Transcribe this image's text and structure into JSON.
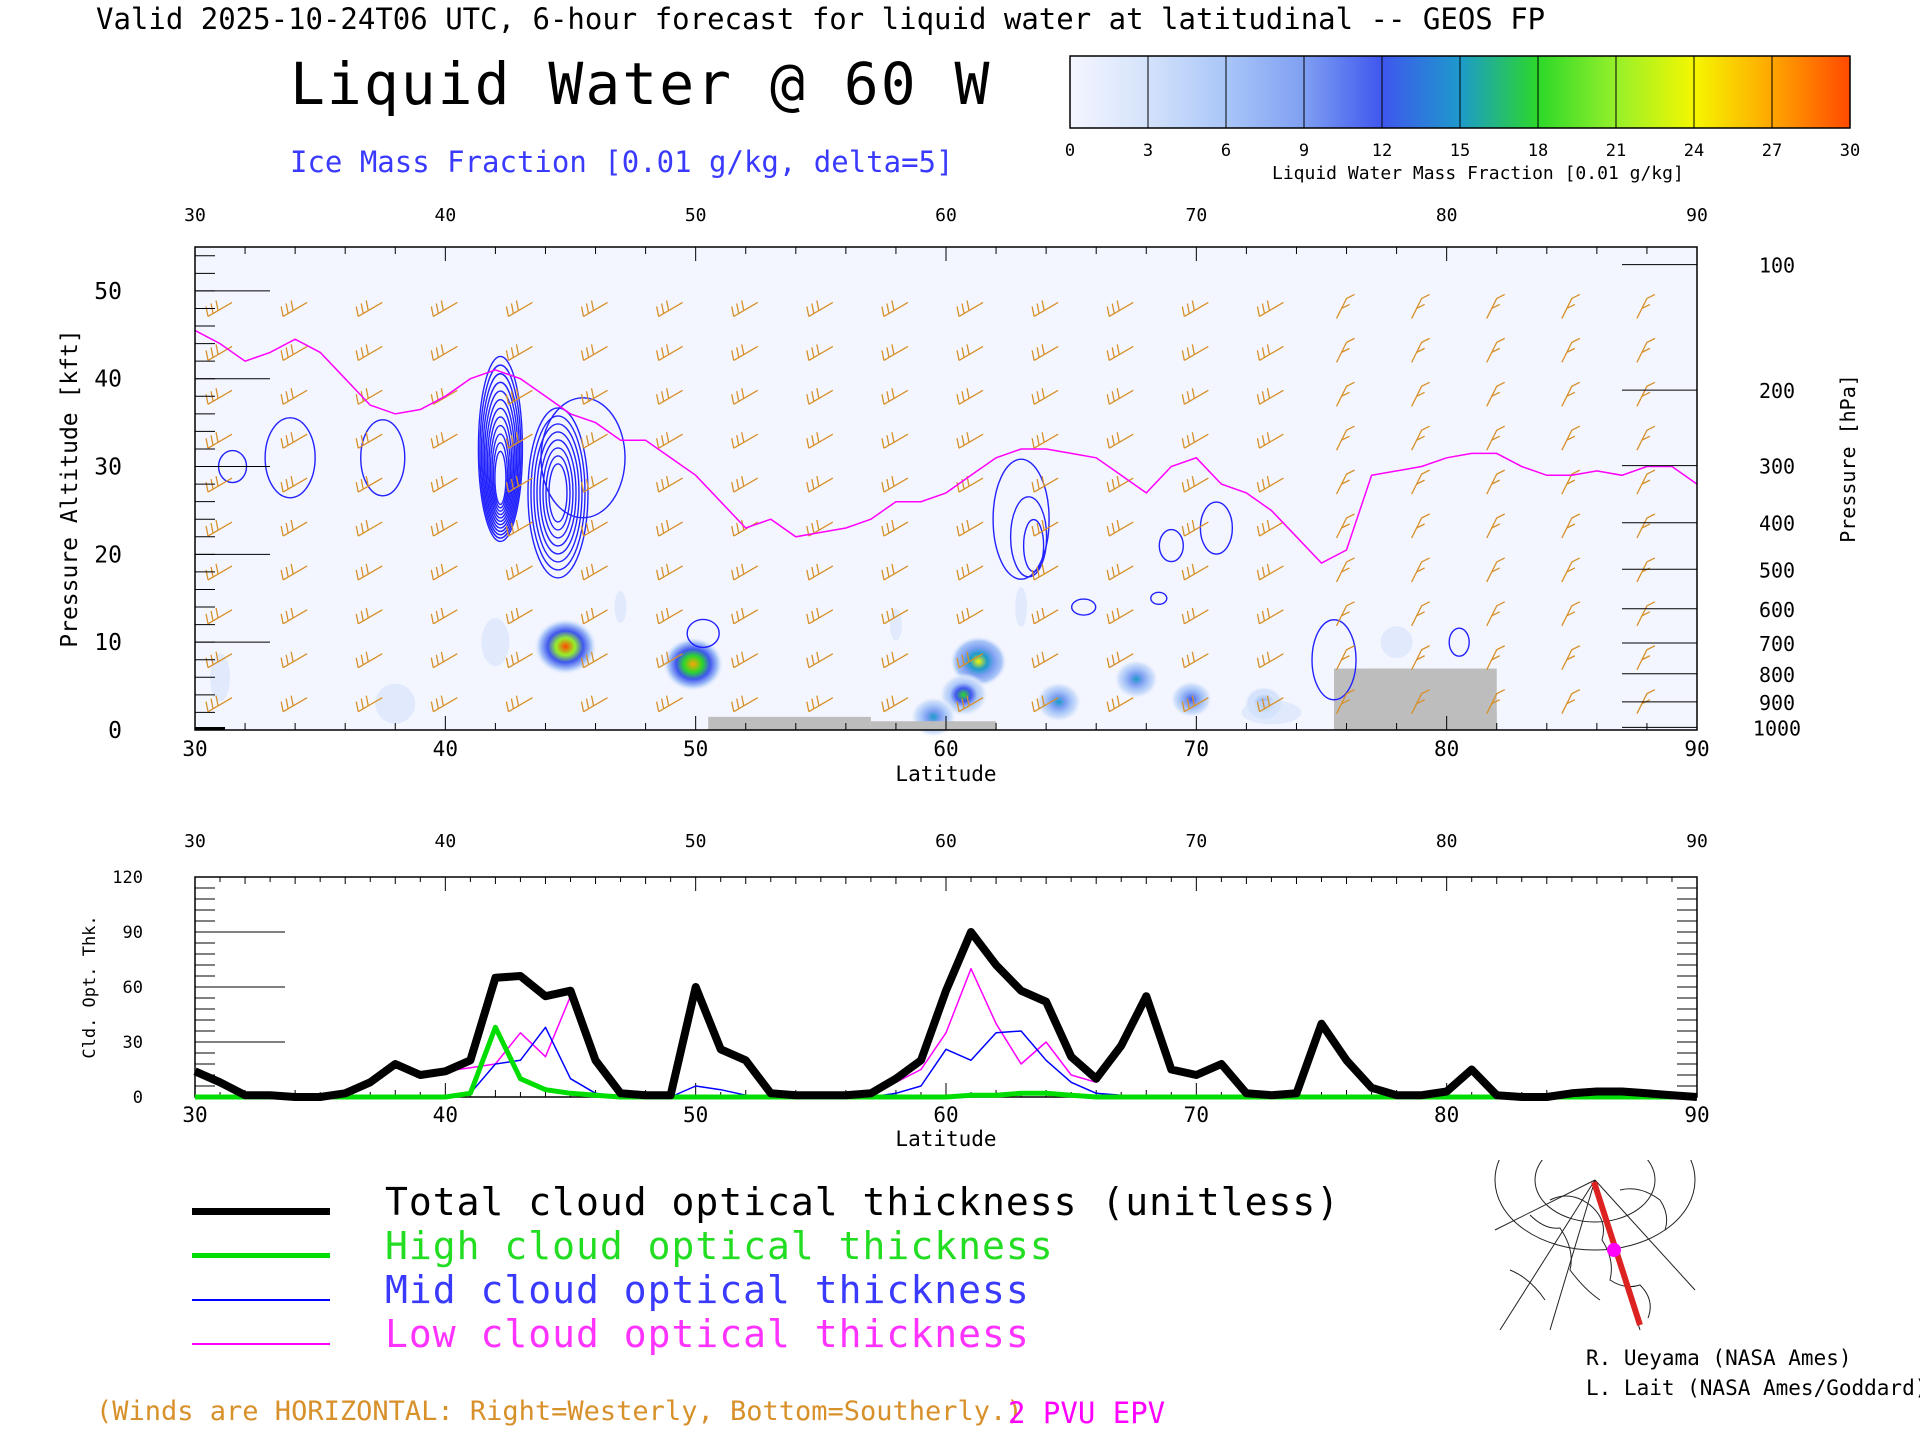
{
  "header": {
    "title": "Valid 2025-10-24T06 UTC, 6-hour forecast for liquid water at latitudinal -- GEOS FP",
    "main_title": "Liquid Water @ 60 W",
    "ice_note": "Ice Mass Fraction [0.01 g/kg, delta=5]"
  },
  "colorbar": {
    "label": "Liquid Water Mass Fraction [0.01 g/kg]",
    "ticks": [
      "0",
      "3",
      "6",
      "9",
      "12",
      "15",
      "18",
      "21",
      "24",
      "27",
      "30"
    ],
    "colors": [
      "#f4f6ff",
      "#d4e2fb",
      "#a9c6f8",
      "#7f9ff2",
      "#3f56ee",
      "#1d9acb",
      "#2cd829",
      "#96f02a",
      "#f5f700",
      "#ffa600",
      "#ff4900"
    ]
  },
  "chart_data": [
    {
      "type": "heatmap",
      "title": "Liquid Water @ 60 W",
      "xlabel": "Latitude",
      "ylabel": "Pressure Altitude [kft]",
      "ylabel_right": "Pressure [hPa]",
      "xlim": [
        30,
        90
      ],
      "ylim": [
        0,
        55
      ],
      "x_ticks": [
        "30",
        "40",
        "50",
        "60",
        "70",
        "80",
        "90"
      ],
      "y_ticks": [
        "0",
        "10",
        "20",
        "30",
        "40",
        "50"
      ],
      "pressure_ticks": [
        {
          "label": "100",
          "kft": 53
        },
        {
          "label": "200",
          "kft": 38.7
        },
        {
          "label": "300",
          "kft": 30.1
        },
        {
          "label": "400",
          "kft": 23.6
        },
        {
          "label": "500",
          "kft": 18.3
        },
        {
          "label": "600",
          "kft": 13.8
        },
        {
          "label": "700",
          "kft": 9.9
        },
        {
          "label": "800",
          "kft": 6.4
        },
        {
          "label": "900",
          "kft": 3.2
        },
        {
          "label": "1000",
          "kft": 0.3
        }
      ],
      "liquid_water_blobs": [
        {
          "lat": 44.8,
          "kft": 9.5,
          "peak": 30
        },
        {
          "lat": 49.9,
          "kft": 7.5,
          "peak": 28
        },
        {
          "lat": 61.3,
          "kft": 7.8,
          "peak": 25
        },
        {
          "lat": 60.7,
          "kft": 4,
          "peak": 18
        },
        {
          "lat": 59.5,
          "kft": 1.5,
          "peak": 15
        },
        {
          "lat": 64.5,
          "kft": 3.2,
          "peak": 15
        },
        {
          "lat": 67.6,
          "kft": 5.8,
          "peak": 14
        },
        {
          "lat": 69.8,
          "kft": 3.5,
          "peak": 12
        },
        {
          "lat": 72.7,
          "kft": 3,
          "peak": 10
        }
      ],
      "epv_2pvu_line": {
        "lat": [
          30,
          31,
          32,
          33,
          34,
          35,
          36,
          37,
          38,
          39,
          40,
          41,
          42,
          43,
          44,
          45,
          46,
          47,
          48,
          49,
          50,
          51,
          52,
          53,
          54,
          55,
          56,
          57,
          58,
          59,
          60,
          61,
          62,
          63,
          64,
          65,
          66,
          67,
          68,
          69,
          70,
          71,
          72,
          73,
          74,
          75,
          76,
          77,
          78,
          79,
          80,
          81,
          82,
          83,
          84,
          85,
          86,
          87,
          88,
          89,
          90
        ],
        "kft": [
          45.5,
          44,
          42,
          43,
          44.5,
          43,
          40,
          37,
          36,
          36.5,
          38,
          40,
          41,
          40,
          38,
          36,
          35,
          33,
          33,
          31,
          29,
          26,
          23,
          24,
          22,
          22.5,
          23,
          24,
          26,
          26,
          27,
          29,
          31,
          32,
          32,
          31.5,
          31,
          29,
          27,
          30,
          31,
          28,
          27,
          25,
          22,
          19,
          20.5,
          29,
          29.5,
          30,
          31,
          31.5,
          31.5,
          30,
          29,
          29,
          29.5,
          29,
          30,
          30,
          28
        ]
      },
      "terrain": [
        {
          "lat_start": 50.5,
          "lat_end": 57,
          "kft": 1.5
        },
        {
          "lat_start": 57,
          "lat_end": 61,
          "kft": 1
        },
        {
          "lat_start": 61,
          "lat_end": 62,
          "kft": 1
        },
        {
          "lat_start": 75.5,
          "lat_end": 82,
          "kft": 7
        }
      ]
    },
    {
      "type": "line",
      "xlabel": "Latitude",
      "ylabel": "Cld. Opt. Thk.",
      "xlim": [
        30,
        90
      ],
      "ylim": [
        0,
        120
      ],
      "x_ticks": [
        "30",
        "40",
        "50",
        "60",
        "70",
        "80",
        "90"
      ],
      "y_ticks": [
        "0",
        "30",
        "60",
        "90",
        "120"
      ],
      "x": [
        30,
        31,
        32,
        33,
        34,
        35,
        36,
        37,
        38,
        39,
        40,
        41,
        42,
        43,
        44,
        45,
        46,
        47,
        48,
        49,
        50,
        51,
        52,
        53,
        54,
        55,
        56,
        57,
        58,
        59,
        60,
        61,
        62,
        63,
        64,
        65,
        66,
        67,
        68,
        69,
        70,
        71,
        72,
        73,
        74,
        75,
        76,
        77,
        78,
        79,
        80,
        81,
        82,
        83,
        84,
        85,
        86,
        87,
        88,
        89,
        90
      ],
      "series": [
        {
          "name": "Total cloud optical thickness (unitless)",
          "color": "#000000",
          "values": [
            14,
            8,
            1,
            1,
            0,
            0,
            2,
            8,
            18,
            12,
            14,
            20,
            65,
            66,
            55,
            58,
            20,
            2,
            1,
            1,
            60,
            26,
            20,
            2,
            1,
            1,
            1,
            2,
            10,
            20,
            58,
            90,
            72,
            58,
            52,
            22,
            10,
            28,
            55,
            15,
            12,
            18,
            2,
            1,
            2,
            40,
            20,
            5,
            1,
            1,
            3,
            15,
            1,
            0,
            0,
            2,
            3,
            3,
            2,
            1,
            0
          ]
        },
        {
          "name": "High cloud optical thickness",
          "color": "#00dd00",
          "values": [
            0,
            0,
            0,
            0,
            0,
            0,
            0,
            0,
            0,
            0,
            0,
            2,
            38,
            10,
            4,
            2,
            1,
            0,
            0,
            0,
            0,
            0,
            0,
            0,
            0,
            0,
            0,
            0,
            0,
            0,
            0,
            1,
            1,
            2,
            2,
            1,
            0,
            0,
            0,
            0,
            0,
            0,
            0,
            0,
            0,
            0,
            0,
            0,
            0,
            0,
            0,
            0,
            0,
            0,
            0,
            0,
            0,
            0,
            0,
            0,
            0
          ]
        },
        {
          "name": "Mid cloud optical thickness",
          "color": "#0000ff",
          "values": [
            0,
            0,
            0,
            0,
            0,
            0,
            0,
            0,
            0,
            0,
            0,
            2,
            18,
            20,
            38,
            10,
            2,
            0,
            0,
            0,
            6,
            4,
            1,
            0,
            0,
            0,
            0,
            0,
            2,
            6,
            26,
            20,
            35,
            36,
            20,
            8,
            2,
            1,
            0,
            0,
            0,
            0,
            0,
            0,
            0,
            0,
            0,
            0,
            0,
            0,
            0,
            0,
            0,
            0,
            0,
            0,
            0,
            0,
            0,
            0,
            0
          ]
        },
        {
          "name": "Low cloud optical thickness",
          "color": "#ff00ff",
          "values": [
            14,
            8,
            1,
            1,
            0,
            0,
            2,
            8,
            18,
            12,
            14,
            16,
            18,
            35,
            22,
            55,
            18,
            2,
            1,
            1,
            56,
            24,
            20,
            2,
            1,
            1,
            1,
            2,
            8,
            15,
            35,
            70,
            40,
            18,
            30,
            12,
            8,
            28,
            55,
            15,
            12,
            18,
            2,
            1,
            2,
            40,
            20,
            5,
            1,
            1,
            3,
            15,
            1,
            0,
            0,
            2,
            3,
            3,
            2,
            1,
            0
          ]
        }
      ]
    }
  ],
  "legend": {
    "total": "Total cloud optical thickness (unitless)",
    "high": "High cloud optical thickness",
    "mid": "Mid cloud optical thickness",
    "low": "Low cloud optical thickness"
  },
  "notes": {
    "winds": "(Winds are HORIZONTAL: Right=Westerly, Bottom=Southerly.)",
    "epv": "2 PVU EPV"
  },
  "credits": {
    "line1": "R. Ueyama (NASA Ames)",
    "line2": "L. Lait (NASA Ames/Goddard)"
  },
  "colors": {
    "ice_contour": "#2222ff",
    "wind_barb": "#d7902a",
    "epv_line": "#ff00ff",
    "terrain": "#bdbdbd"
  }
}
